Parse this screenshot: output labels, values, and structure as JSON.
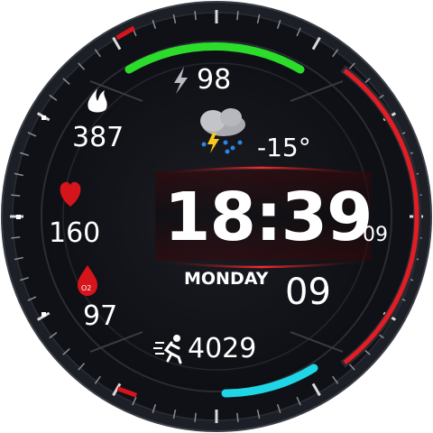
{
  "watch_face": {
    "battery": "98",
    "calories": "387",
    "heart_rate": "160",
    "spo2": "97",
    "spo2_badge": "O2",
    "temperature": "-15°",
    "time": "18:39",
    "seconds": "09",
    "day": "MONDAY",
    "date": "09",
    "steps": "4029"
  },
  "icons": {
    "battery": "lightning-icon",
    "calories": "flame-icon",
    "heart_rate": "heart-icon",
    "spo2": "blood-drop-icon",
    "weather": "thunderstorm-icon",
    "steps": "runner-icon"
  },
  "colors": {
    "arc_top": "#2bdc2b",
    "arc_bottom": "#1fd6e6",
    "arc_right": "#e31d25",
    "accent_red": "#d5151b",
    "background": "#121319",
    "text": "#ffffff"
  }
}
